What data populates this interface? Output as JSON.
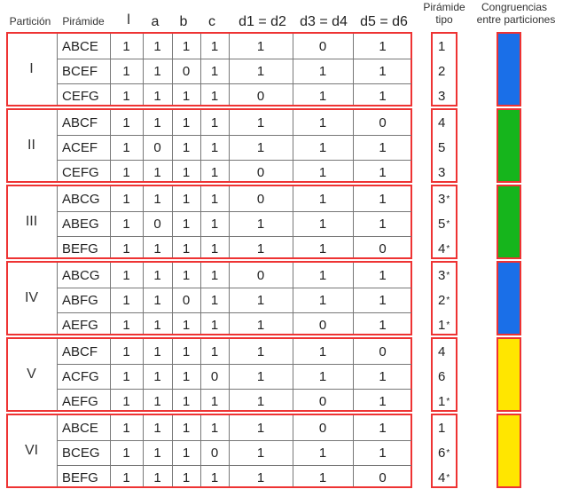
{
  "headers": {
    "particion": "Partición",
    "piramide": "Pirámide",
    "cols": [
      "l",
      "a",
      "b",
      "c",
      "d1 = d2",
      "d3 = d4",
      "d5 = d6"
    ],
    "tipo": [
      "Pirámide",
      "tipo"
    ],
    "congruencias": [
      "Congruencias",
      "entre particiones"
    ]
  },
  "partitions": [
    {
      "label": "I",
      "color": "#1a6fe8",
      "rows": [
        {
          "pyramid": "ABCE",
          "values": [
            "1",
            "1",
            "1",
            "1",
            "1",
            "0",
            "1"
          ],
          "tipo": "1",
          "star": ""
        },
        {
          "pyramid": "BCEF",
          "values": [
            "1",
            "1",
            "0",
            "1",
            "1",
            "1",
            "1"
          ],
          "tipo": "2",
          "star": ""
        },
        {
          "pyramid": "CEFG",
          "values": [
            "1",
            "1",
            "1",
            "1",
            "0",
            "1",
            "1"
          ],
          "tipo": "3",
          "star": ""
        }
      ]
    },
    {
      "label": "II",
      "color": "#16b51c",
      "rows": [
        {
          "pyramid": "ABCF",
          "values": [
            "1",
            "1",
            "1",
            "1",
            "1",
            "1",
            "0"
          ],
          "tipo": "4",
          "star": ""
        },
        {
          "pyramid": "ACEF",
          "values": [
            "1",
            "0",
            "1",
            "1",
            "1",
            "1",
            "1"
          ],
          "tipo": "5",
          "star": ""
        },
        {
          "pyramid": "CEFG",
          "values": [
            "1",
            "1",
            "1",
            "1",
            "0",
            "1",
            "1"
          ],
          "tipo": "3",
          "star": ""
        }
      ]
    },
    {
      "label": "III",
      "color": "#16b51c",
      "rows": [
        {
          "pyramid": "ABCG",
          "values": [
            "1",
            "1",
            "1",
            "1",
            "0",
            "1",
            "1"
          ],
          "tipo": "3",
          "star": "*"
        },
        {
          "pyramid": "ABEG",
          "values": [
            "1",
            "0",
            "1",
            "1",
            "1",
            "1",
            "1"
          ],
          "tipo": "5",
          "star": "*"
        },
        {
          "pyramid": "BEFG",
          "values": [
            "1",
            "1",
            "1",
            "1",
            "1",
            "1",
            "0"
          ],
          "tipo": "4",
          "star": "*"
        }
      ]
    },
    {
      "label": "IV",
      "color": "#1a6fe8",
      "rows": [
        {
          "pyramid": "ABCG",
          "values": [
            "1",
            "1",
            "1",
            "1",
            "0",
            "1",
            "1"
          ],
          "tipo": "3",
          "star": "*"
        },
        {
          "pyramid": "ABFG",
          "values": [
            "1",
            "1",
            "0",
            "1",
            "1",
            "1",
            "1"
          ],
          "tipo": "2",
          "star": "*"
        },
        {
          "pyramid": "AEFG",
          "values": [
            "1",
            "1",
            "1",
            "1",
            "1",
            "0",
            "1"
          ],
          "tipo": "1",
          "star": "*"
        }
      ]
    },
    {
      "label": "V",
      "color": "#ffe600",
      "rows": [
        {
          "pyramid": "ABCF",
          "values": [
            "1",
            "1",
            "1",
            "1",
            "1",
            "1",
            "0"
          ],
          "tipo": "4",
          "star": ""
        },
        {
          "pyramid": "ACFG",
          "values": [
            "1",
            "1",
            "1",
            "0",
            "1",
            "1",
            "1"
          ],
          "tipo": "6",
          "star": ""
        },
        {
          "pyramid": "AEFG",
          "values": [
            "1",
            "1",
            "1",
            "1",
            "1",
            "0",
            "1"
          ],
          "tipo": "1",
          "star": "*"
        }
      ]
    },
    {
      "label": "VI",
      "color": "#ffe600",
      "rows": [
        {
          "pyramid": "ABCE",
          "values": [
            "1",
            "1",
            "1",
            "1",
            "1",
            "0",
            "1"
          ],
          "tipo": "1",
          "star": ""
        },
        {
          "pyramid": "BCEG",
          "values": [
            "1",
            "1",
            "1",
            "0",
            "1",
            "1",
            "1"
          ],
          "tipo": "6",
          "star": "*"
        },
        {
          "pyramid": "BEFG",
          "values": [
            "1",
            "1",
            "1",
            "1",
            "1",
            "1",
            "0"
          ],
          "tipo": "4",
          "star": "*"
        }
      ]
    }
  ]
}
